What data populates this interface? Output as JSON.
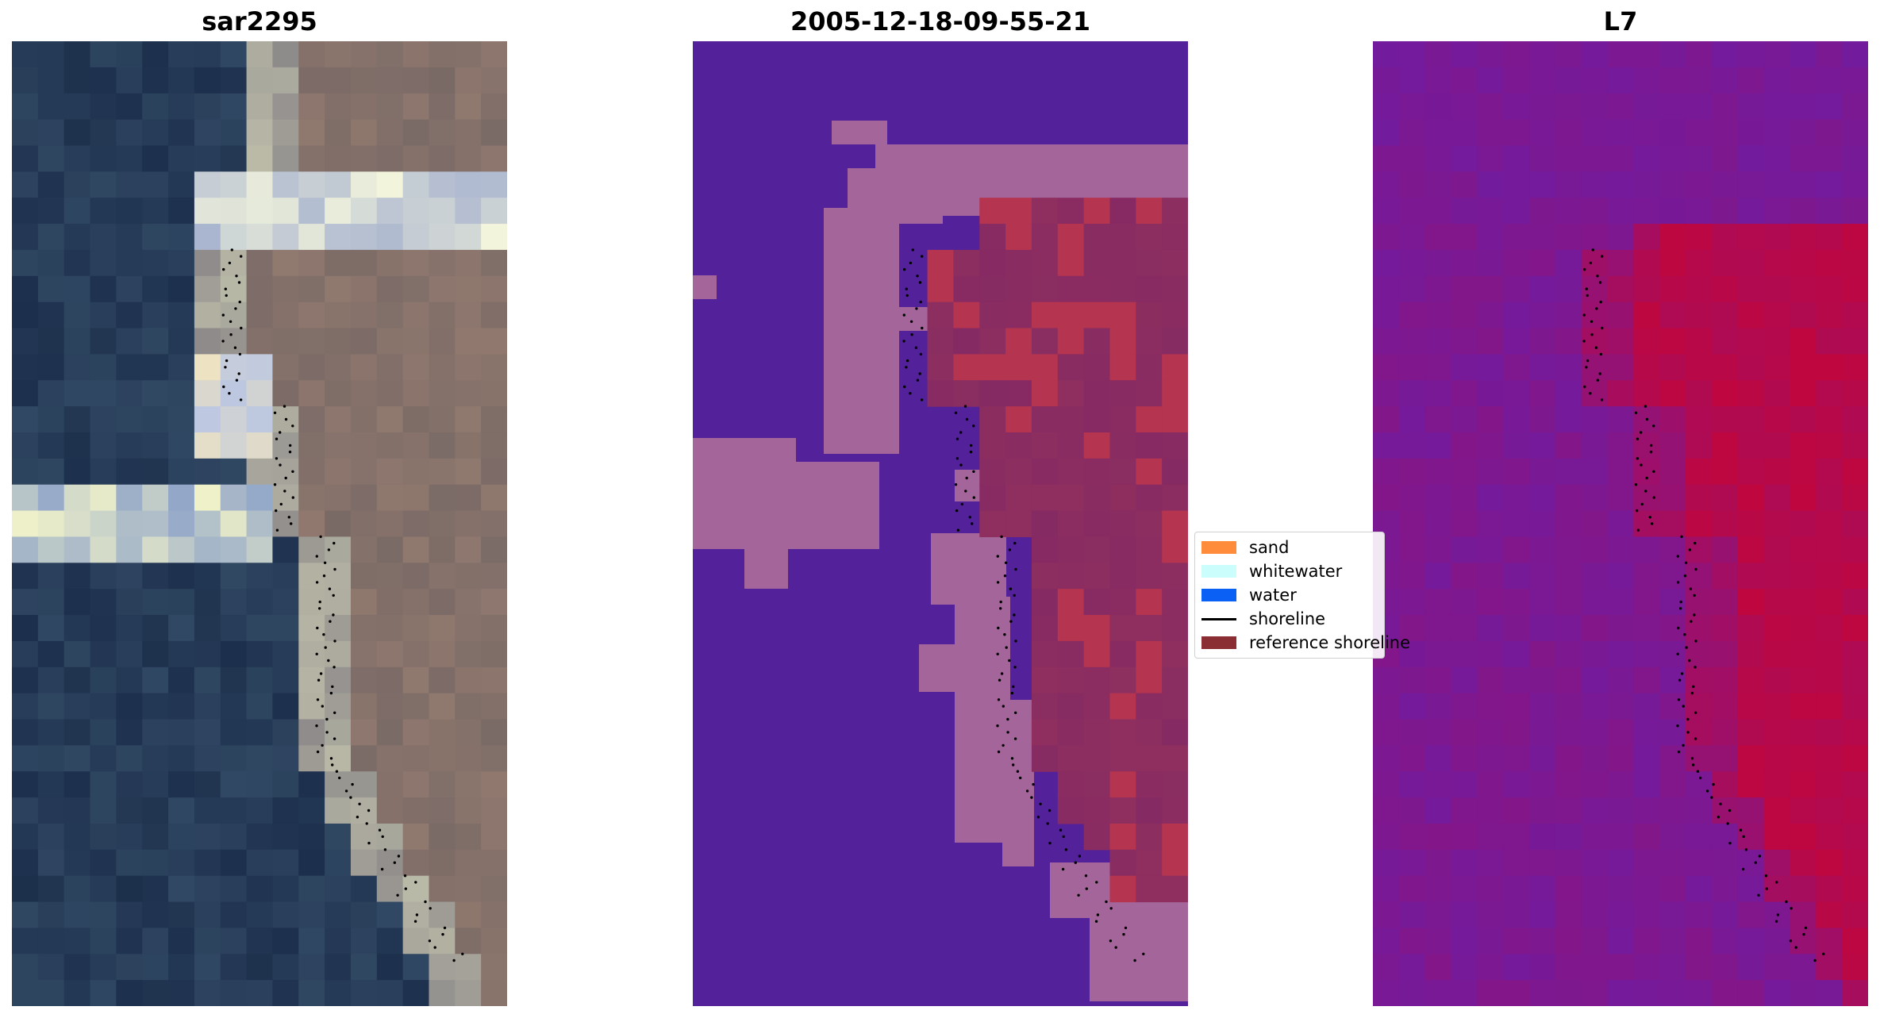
{
  "panels": [
    {
      "title": "sar2295"
    },
    {
      "title": "2005-12-18-09-55-21"
    },
    {
      "title": "L7"
    }
  ],
  "legend": {
    "items": [
      {
        "label": "sand",
        "color": "#ff8c3a"
      },
      {
        "label": "whitewater",
        "color": "#ccfdfd"
      },
      {
        "label": "water",
        "color": "#0a5ff5"
      },
      {
        "label": "shoreline",
        "color": "#000000"
      },
      {
        "label": "reference shoreline",
        "color": "#8b2e34"
      }
    ]
  },
  "colors": {
    "classified_background": "#53219a",
    "classified_sand_blob": "#a4669a",
    "classified_land": "#862a63",
    "classified_land_bright": "#b5344f",
    "rgb_water_dark": "#1c2f4c",
    "rgb_land": "#7a6a66",
    "rgb_bright": "#e9ebc6",
    "index_low": "#6e1ca3",
    "index_high": "#c0063e"
  }
}
